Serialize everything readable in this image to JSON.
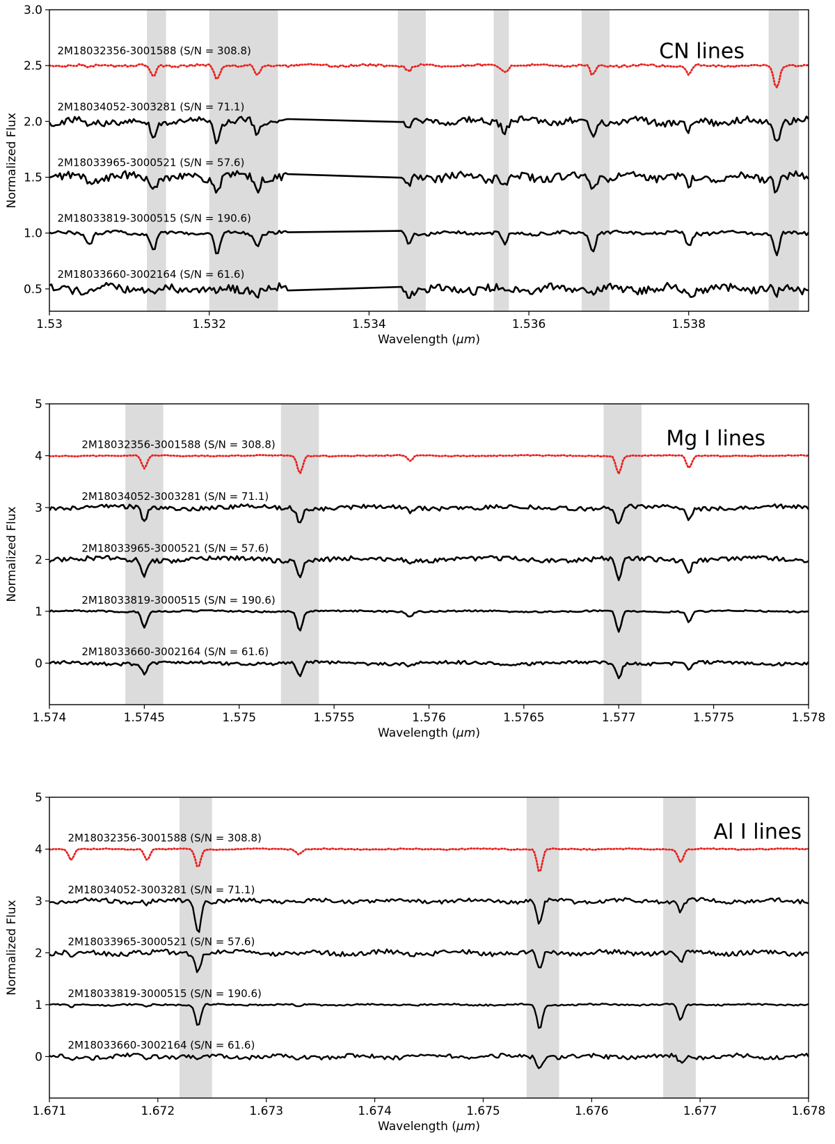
{
  "chart_data": [
    {
      "type": "line",
      "title": "CN lines",
      "xlabel": "Wavelength (μm)",
      "ylabel": "Normalized Flux",
      "xlim": [
        1.53,
        1.5395
      ],
      "ylim": [
        0.3,
        3.0
      ],
      "xticks": [
        1.53,
        1.532,
        1.534,
        1.536,
        1.538
      ],
      "xtick_labels": [
        "1.53",
        "1.532",
        "1.534",
        "1.536",
        "1.538"
      ],
      "yticks": [
        0.5,
        1.0,
        1.5,
        2.0,
        2.5,
        3.0
      ],
      "ytick_labels": [
        "0.5",
        "1.0",
        "1.5",
        "2.0",
        "2.5",
        "3.0"
      ],
      "shaded_regions": [
        [
          1.53122,
          1.53146
        ],
        [
          1.532,
          1.53286
        ],
        [
          1.53436,
          1.53471
        ],
        [
          1.53556,
          1.53575
        ],
        [
          1.53666,
          1.53701
        ],
        [
          1.539,
          1.53938
        ]
      ],
      "series": [
        {
          "name": "2M18032356-3001588 (S/N = 308.8)",
          "label_x": 1.5301,
          "label_y": 2.6,
          "color": "#e8221f",
          "style": "dotted",
          "offset": 2.5,
          "depths": [
            0.02,
            0.1,
            0.12,
            0.1,
            0.05,
            0.06,
            0.09,
            0.08,
            0.2
          ],
          "noise": 0.01,
          "gaps": []
        },
        {
          "name": "2M18034052-3003281 (S/N = 71.1)",
          "label_x": 1.5301,
          "label_y": 2.1,
          "color": "#000000",
          "style": "solid",
          "offset": 2.0,
          "depths": [
            0.05,
            0.15,
            0.18,
            0.12,
            0.09,
            0.08,
            0.14,
            0.1,
            0.18
          ],
          "noise": 0.03,
          "gaps": [
            [
              1.533,
              1.5344
            ]
          ]
        },
        {
          "name": "2M18033965-3000521 (S/N = 57.6)",
          "label_x": 1.5301,
          "label_y": 1.6,
          "color": "#000000",
          "style": "solid",
          "offset": 1.5,
          "depths": [
            0.05,
            0.1,
            0.12,
            0.1,
            0.08,
            0.07,
            0.1,
            0.08,
            0.12
          ],
          "noise": 0.035,
          "gaps": [
            [
              1.533,
              1.5344
            ]
          ]
        },
        {
          "name": "2M18033819-3000515 (S/N = 190.6)",
          "label_x": 1.5301,
          "label_y": 1.1,
          "color": "#000000",
          "style": "solid",
          "offset": 1.0,
          "depths": [
            0.1,
            0.15,
            0.2,
            0.12,
            0.1,
            0.1,
            0.15,
            0.12,
            0.2
          ],
          "noise": 0.015,
          "gaps": [
            [
              1.533,
              1.5344
            ]
          ]
        },
        {
          "name": "2M18033660-3002164 (S/N = 61.6)",
          "label_x": 1.5301,
          "label_y": 0.6,
          "color": "#000000",
          "style": "solid",
          "offset": 0.5,
          "depths": [
            0.03,
            0.05,
            0.06,
            0.05,
            0.04,
            0.04,
            0.05,
            0.05,
            0.06
          ],
          "noise": 0.035,
          "gaps": [
            [
              1.533,
              1.5344
            ]
          ]
        }
      ],
      "line_centers": [
        1.5305,
        1.5313,
        1.5321,
        1.5326,
        1.5345,
        1.5357,
        1.5368,
        1.538,
        1.5391
      ]
    },
    {
      "type": "line",
      "title": "Mg I lines",
      "xlabel": "Wavelength (μm)",
      "ylabel": "Normalized Flux",
      "xlim": [
        1.574,
        1.578
      ],
      "ylim": [
        -0.8,
        5.0
      ],
      "xticks": [
        1.574,
        1.5745,
        1.575,
        1.5755,
        1.576,
        1.5765,
        1.577,
        1.5775,
        1.578
      ],
      "xtick_labels": [
        "1.574",
        "1.5745",
        "1.575",
        "1.5755",
        "1.576",
        "1.5765",
        "1.577",
        "1.5775",
        "1.578"
      ],
      "yticks": [
        0,
        1,
        2,
        3,
        4,
        5
      ],
      "ytick_labels": [
        "0",
        "1",
        "2",
        "3",
        "4",
        "5"
      ],
      "shaded_regions": [
        [
          1.5744,
          1.5746
        ],
        [
          1.57522,
          1.57542
        ],
        [
          1.57692,
          1.57712
        ]
      ],
      "series": [
        {
          "name": "2M18032356-3001588 (S/N = 308.8)",
          "label_x": 1.57417,
          "label_y": 4.15,
          "color": "#e8221f",
          "style": "dotted",
          "offset": 4.0,
          "depths": [
            0.25,
            0.35,
            0.1,
            0.35,
            0.25
          ],
          "noise": 0.01,
          "gaps": []
        },
        {
          "name": "2M18034052-3003281 (S/N = 71.1)",
          "label_x": 1.57417,
          "label_y": 3.15,
          "color": "#000000",
          "style": "solid",
          "offset": 3.0,
          "depths": [
            0.25,
            0.3,
            0.08,
            0.35,
            0.2
          ],
          "noise": 0.04,
          "gaps": []
        },
        {
          "name": "2M18033965-3000521 (S/N = 57.6)",
          "label_x": 1.57417,
          "label_y": 2.15,
          "color": "#000000",
          "style": "solid",
          "offset": 2.0,
          "depths": [
            0.3,
            0.35,
            0.1,
            0.4,
            0.2
          ],
          "noise": 0.045,
          "gaps": []
        },
        {
          "name": "2M18033819-3000515 (S/N = 190.6)",
          "label_x": 1.57417,
          "label_y": 1.15,
          "color": "#000000",
          "style": "solid",
          "offset": 1.0,
          "depths": [
            0.3,
            0.38,
            0.1,
            0.4,
            0.2
          ],
          "noise": 0.015,
          "gaps": []
        },
        {
          "name": "2M18033660-3002164 (S/N = 61.6)",
          "label_x": 1.57417,
          "label_y": 0.15,
          "color": "#000000",
          "style": "solid",
          "offset": 0.0,
          "depths": [
            0.2,
            0.28,
            0.05,
            0.3,
            0.12
          ],
          "noise": 0.03,
          "gaps": []
        }
      ],
      "line_centers": [
        1.5745,
        1.57532,
        1.5759,
        1.577,
        1.57737
      ]
    },
    {
      "type": "line",
      "title": "Al I lines",
      "xlabel": "Wavelength (μm)",
      "ylabel": "Normalized Flux",
      "xlim": [
        1.671,
        1.678
      ],
      "ylim": [
        -0.8,
        5.0
      ],
      "xticks": [
        1.671,
        1.672,
        1.673,
        1.674,
        1.675,
        1.676,
        1.677,
        1.678
      ],
      "xtick_labels": [
        "1.671",
        "1.672",
        "1.673",
        "1.674",
        "1.675",
        "1.676",
        "1.677",
        "1.678"
      ],
      "yticks": [
        0,
        1,
        2,
        3,
        4,
        5
      ],
      "ytick_labels": [
        "0",
        "1",
        "2",
        "3",
        "4",
        "5"
      ],
      "shaded_regions": [
        [
          1.6722,
          1.6725
        ],
        [
          1.6754,
          1.6757
        ],
        [
          1.67666,
          1.67696
        ]
      ],
      "series": [
        {
          "name": "2M18032356-3001588 (S/N = 308.8)",
          "label_x": 1.67117,
          "label_y": 4.15,
          "color": "#e8221f",
          "style": "dotted",
          "offset": 4.0,
          "depths": [
            0.2,
            0.2,
            0.35,
            0.1,
            0.45,
            0.25
          ],
          "noise": 0.01,
          "gaps": []
        },
        {
          "name": "2M18034052-3003281 (S/N = 71.1)",
          "label_x": 1.67117,
          "label_y": 3.15,
          "color": "#000000",
          "style": "solid",
          "offset": 3.0,
          "depths": [
            0.05,
            0.05,
            0.6,
            0.05,
            0.45,
            0.2
          ],
          "noise": 0.04,
          "gaps": []
        },
        {
          "name": "2M18033965-3000521 (S/N = 57.6)",
          "label_x": 1.67117,
          "label_y": 2.15,
          "color": "#000000",
          "style": "solid",
          "offset": 2.0,
          "depths": [
            0.1,
            0.05,
            0.35,
            0.05,
            0.35,
            0.2
          ],
          "noise": 0.045,
          "gaps": []
        },
        {
          "name": "2M18033819-3000515 (S/N = 190.6)",
          "label_x": 1.67117,
          "label_y": 1.15,
          "color": "#000000",
          "style": "solid",
          "offset": 1.0,
          "depths": [
            0.05,
            0.05,
            0.42,
            0.05,
            0.48,
            0.3
          ],
          "noise": 0.015,
          "gaps": []
        },
        {
          "name": "2M18033660-3002164 (S/N = 61.6)",
          "label_x": 1.67117,
          "label_y": 0.15,
          "color": "#000000",
          "style": "solid",
          "offset": 0.0,
          "depths": [
            0.1,
            0.05,
            0.05,
            0.05,
            0.2,
            0.1
          ],
          "noise": 0.04,
          "gaps": []
        }
      ],
      "line_centers": [
        1.6712,
        1.6719,
        1.67237,
        1.6733,
        1.67552,
        1.67682
      ]
    }
  ]
}
